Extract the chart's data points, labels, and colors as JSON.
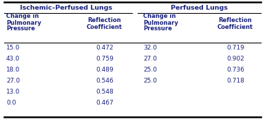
{
  "group1_header": "Ischemic–Perfused Lungs",
  "group2_header": "Perfused Lungs",
  "col1_h1": "Change in",
  "col1_h2": "Pulmonary",
  "col1_h3": "Pressure",
  "col2_h1": "Reflection",
  "col2_h2": "Coefficient",
  "col3_h1": "Change in",
  "col3_h2": "Pulmonary",
  "col3_h3": "Pressure",
  "col4_h1": "Reflection",
  "col4_h2": "Coefficient",
  "isch_pressure": [
    "15.0",
    "43.0",
    "18.0",
    "27.0",
    "13.0",
    "0.0"
  ],
  "isch_reflect": [
    "0.472",
    "0.759",
    "0.489",
    "0.546",
    "0.548",
    "0.467"
  ],
  "perf_pressure": [
    "32.0",
    "27.0",
    "25.0",
    "25.0",
    "",
    ""
  ],
  "perf_reflect": [
    "0.719",
    "0.902",
    "0.736",
    "0.718",
    "",
    ""
  ],
  "header_color": "#1a237e",
  "data_color": "#1a237e",
  "bg_color": "#ffffff",
  "line_color": "#000000",
  "fig_width": 3.85,
  "fig_height": 1.73,
  "dpi": 100
}
